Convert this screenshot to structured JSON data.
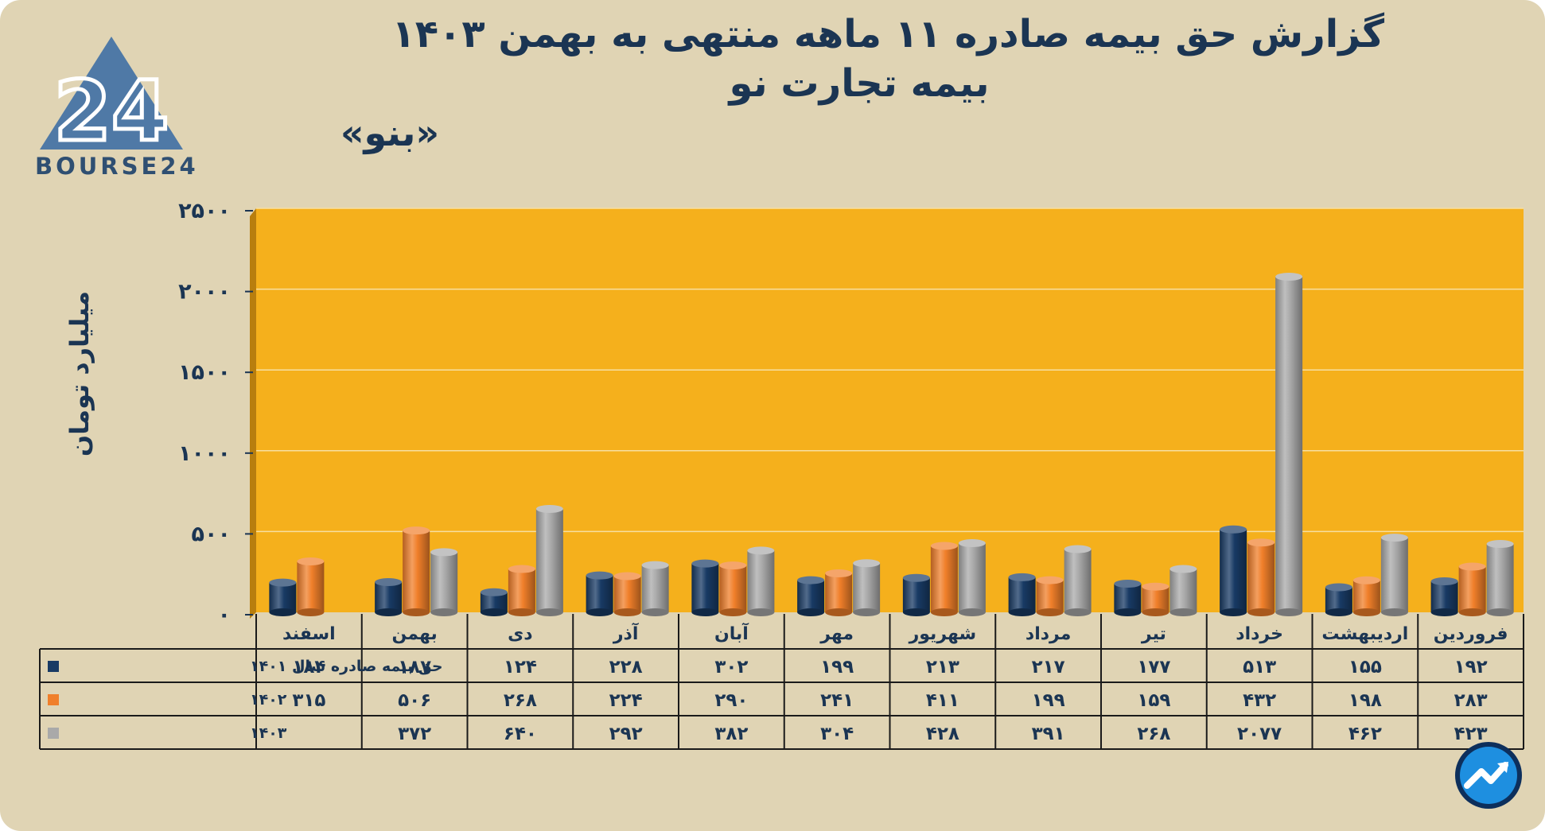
{
  "header": {
    "title_line1": "گزارش  حق بیمه صادره ۱۱ ماهه منتهی به بهمن ۱۴۰۳",
    "title_line2": "بیمه تجارت نو",
    "ticker": "«بنو»"
  },
  "logo": {
    "text": "BOURSE24",
    "mark": "24",
    "icon": "bourse24-triangle-logo"
  },
  "badge": {
    "icon": "trend-arrow-icon"
  },
  "colors": {
    "s1401": "#183a64",
    "s1402": "#f07f2a",
    "s1403": "#a9a9a9",
    "plot_bg": "#f5b01c",
    "card_bg": "#e0d4b4"
  },
  "chart_data": {
    "type": "bar",
    "title": "گزارش  حق بیمه صادره ۱۱ ماهه منتهی به بهمن ۱۴۰۳",
    "subtitle": "بیمه تجارت نو",
    "xlabel": "",
    "ylabel": "میلیارد تومان",
    "ylim": [
      0,
      2500
    ],
    "yticks": [
      0,
      500,
      1000,
      1500,
      2000,
      2500
    ],
    "ytick_labels": [
      "۰",
      "۵۰۰",
      "۱۰۰۰",
      "۱۵۰۰",
      "۲۰۰۰",
      "۲۵۰۰"
    ],
    "grid": true,
    "legend": "data-table",
    "categories": [
      "فروردین",
      "اردیبهشت",
      "خرداد",
      "تیر",
      "مرداد",
      "شهریور",
      "مهر",
      "آبان",
      "آذر",
      "دی",
      "بهمن",
      "اسفند"
    ],
    "series": [
      {
        "name": "حق بیمه صادره سال ۱۴۰۱",
        "color": "#183a64",
        "values": [
          192,
          155,
          513,
          177,
          217,
          213,
          199,
          302,
          228,
          124,
          187,
          184
        ],
        "labels": [
          "۱۹۲",
          "۱۵۵",
          "۵۱۳",
          "۱۷۷",
          "۲۱۷",
          "۲۱۳",
          "۱۹۹",
          "۳۰۲",
          "۲۲۸",
          "۱۲۴",
          "۱۸۷",
          "۱۸۴"
        ]
      },
      {
        "name": "۱۴۰۲",
        "color": "#f07f2a",
        "values": [
          283,
          198,
          432,
          159,
          199,
          411,
          241,
          290,
          224,
          268,
          506,
          315
        ],
        "labels": [
          "۲۸۳",
          "۱۹۸",
          "۴۳۲",
          "۱۵۹",
          "۱۹۹",
          "۴۱۱",
          "۲۴۱",
          "۲۹۰",
          "۲۲۴",
          "۲۶۸",
          "۵۰۶",
          "۳۱۵"
        ]
      },
      {
        "name": "۱۴۰۳",
        "color": "#a9a9a9",
        "values": [
          423,
          462,
          2077,
          268,
          391,
          428,
          304,
          382,
          292,
          640,
          372,
          null
        ],
        "labels": [
          "۴۲۳",
          "۴۶۲",
          "۲۰۷۷",
          "۲۶۸",
          "۳۹۱",
          "۴۲۸",
          "۳۰۴",
          "۳۸۲",
          "۲۹۲",
          "۶۴۰",
          "۳۷۲",
          ""
        ]
      }
    ]
  }
}
